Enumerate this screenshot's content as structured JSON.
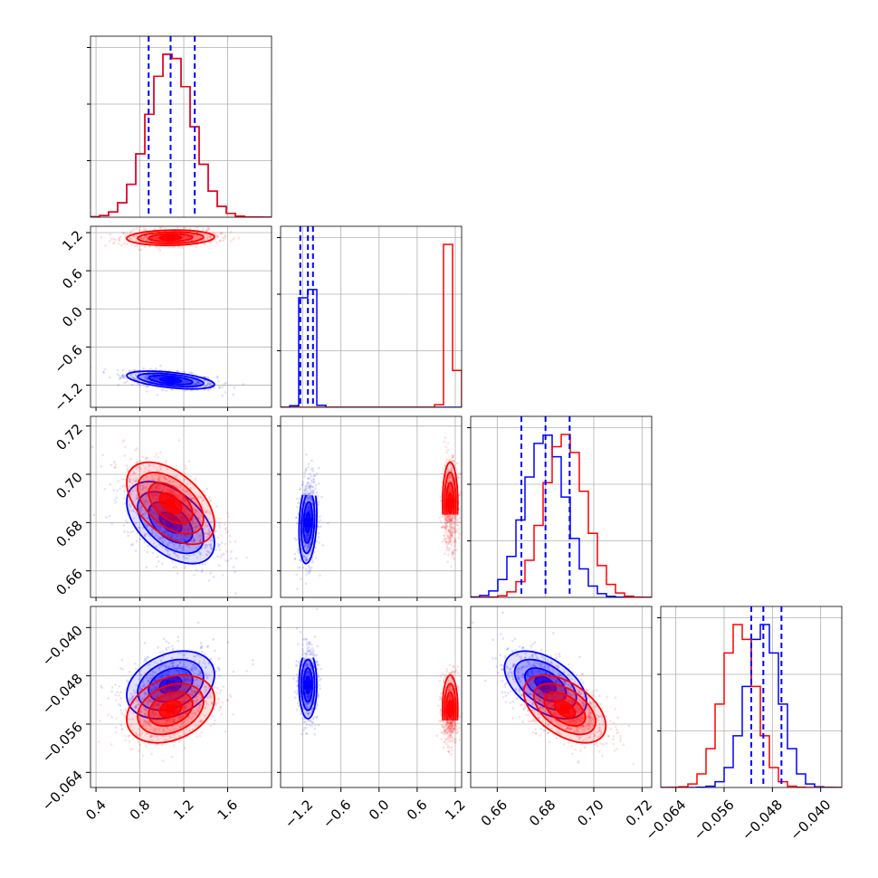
{
  "chart_data": {
    "type": "corner",
    "parameters": 4,
    "series": [
      {
        "color": "#0000ff",
        "means": [
          1.08,
          -1.12,
          0.68,
          -0.0495
        ],
        "sds": [
          0.2,
          0.07,
          0.0085,
          0.0028
        ],
        "corr": [
          [
            1,
            -0.5,
            -0.5,
            0.3
          ],
          [
            -0.5,
            1,
            0.2,
            0
          ],
          [
            -0.5,
            0.2,
            1,
            -0.5
          ],
          [
            0.3,
            0,
            -0.5,
            1
          ]
        ],
        "quantiles": [
          [
            0.88,
            1.08,
            1.3
          ],
          [
            -1.24,
            -1.12,
            -1.04
          ],
          [
            0.67,
            0.68,
            0.69
          ],
          [
            -0.0515,
            -0.0495,
            -0.0465
          ]
        ]
      },
      {
        "color": "#ff0000",
        "means": [
          1.08,
          1.12,
          0.688,
          -0.0535
        ],
        "sds": [
          0.2,
          0.06,
          0.0085,
          0.0028
        ],
        "corr": [
          [
            1,
            0.1,
            -0.5,
            0.3
          ],
          [
            0.1,
            1,
            0,
            0
          ],
          [
            -0.5,
            0,
            1,
            -0.5
          ],
          [
            0.3,
            0,
            -0.5,
            1
          ]
        ]
      }
    ],
    "ranges": [
      [
        0.35,
        2.0
      ],
      [
        -1.55,
        1.3
      ],
      [
        0.649,
        0.724
      ],
      [
        -0.0665,
        -0.0365
      ]
    ],
    "ticks": [
      [
        "0.4",
        "0.8",
        "1.2",
        "1.6"
      ],
      [
        "−1.2",
        "−0.6",
        "0.0",
        "0.6",
        "1.2"
      ],
      [
        "0.66",
        "0.68",
        "0.70",
        "0.72"
      ],
      [
        "−0.064",
        "−0.056",
        "−0.048",
        "−0.040"
      ]
    ],
    "grid": true,
    "colors": {
      "blue": "#0000ff",
      "red": "#ff0000",
      "grid": "#b0b0b0"
    }
  }
}
